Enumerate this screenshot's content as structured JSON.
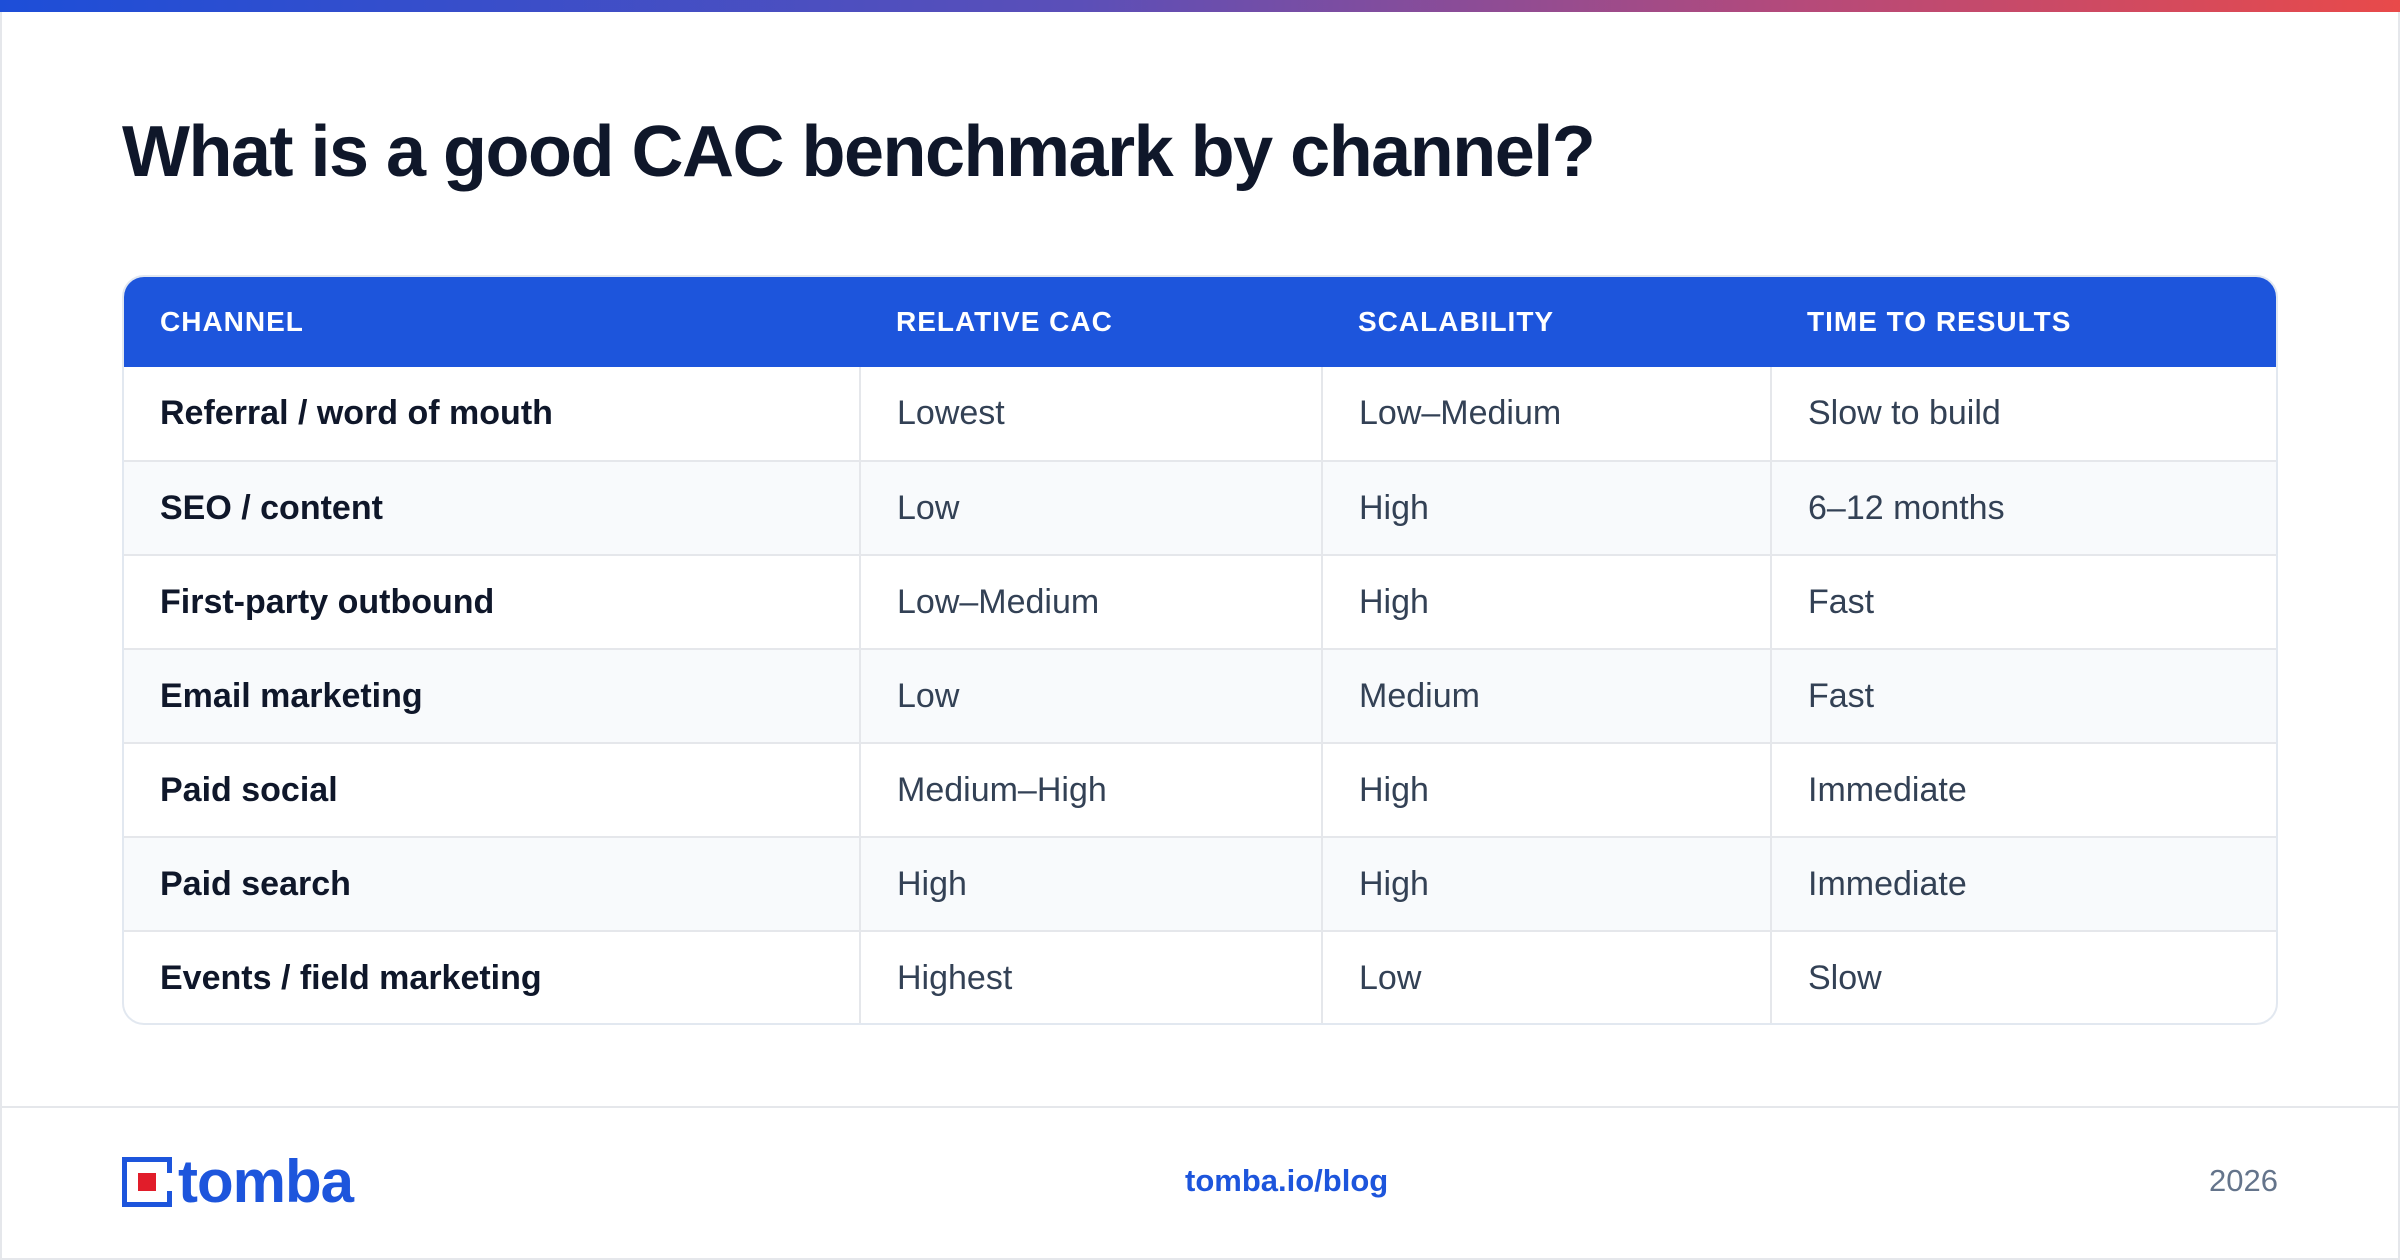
{
  "title": "What is a good CAC benchmark by channel?",
  "table": {
    "headers": [
      "CHANNEL",
      "RELATIVE CAC",
      "SCALABILITY",
      "TIME TO RESULTS"
    ],
    "rows": [
      [
        "Referral / word of mouth",
        "Lowest",
        "Low–Medium",
        "Slow to build"
      ],
      [
        "SEO / content",
        "Low",
        "High",
        "6–12 months"
      ],
      [
        "First-party outbound",
        "Low–Medium",
        "High",
        "Fast"
      ],
      [
        "Email marketing",
        "Low",
        "Medium",
        "Fast"
      ],
      [
        "Paid social",
        "Medium–High",
        "High",
        "Immediate"
      ],
      [
        "Paid search",
        "High",
        "High",
        "Immediate"
      ],
      [
        "Events / field marketing",
        "Highest",
        "Low",
        "Slow"
      ]
    ]
  },
  "footer": {
    "logo_text": "tomba",
    "link": "tomba.io/blog",
    "year": "2026"
  },
  "colors": {
    "accent": "#1d55dc",
    "logo_square_accent": "#e11d2a",
    "gradient_start": "#1d4ed8",
    "gradient_end": "#e84a4a"
  }
}
